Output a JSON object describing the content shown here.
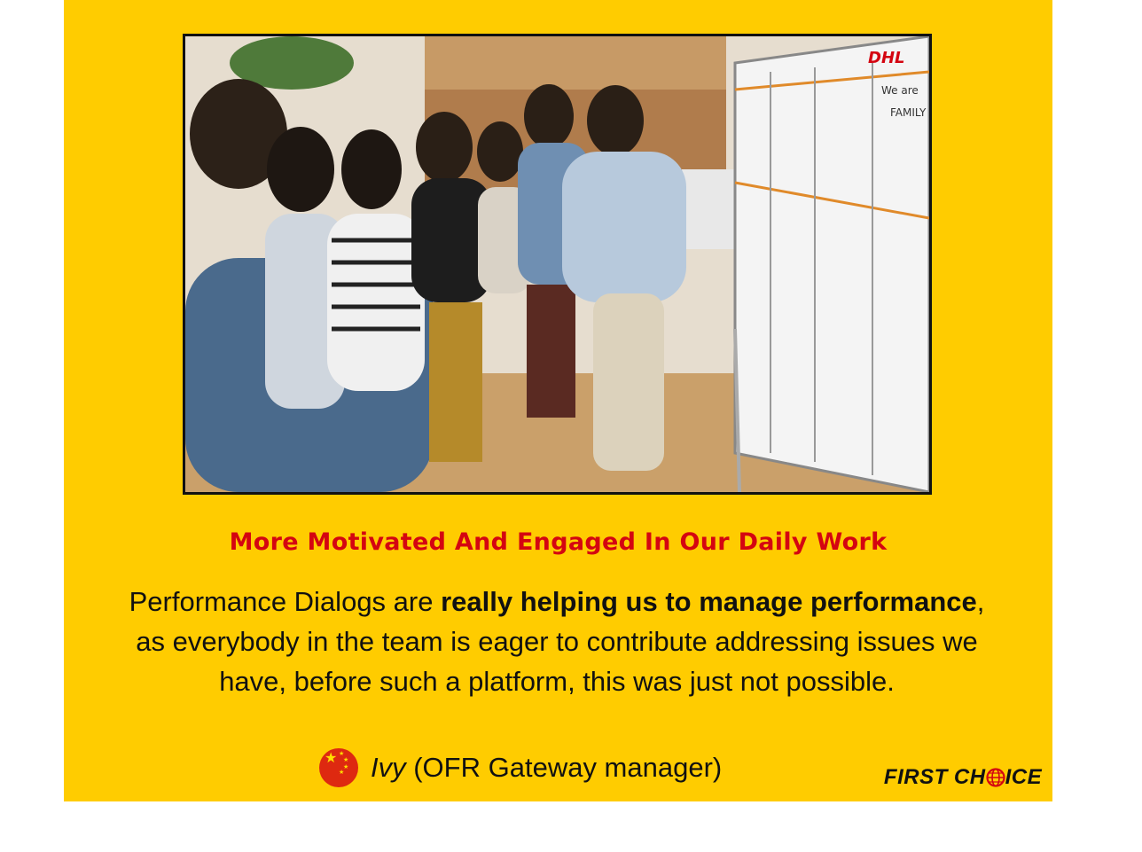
{
  "headline": "More Motivated And Engaged In Our Daily Work",
  "quote": {
    "part1": "Performance Dialogs are ",
    "bold1": "really helping us to manage performance",
    "part2": ", as everybody in  the team is eager to contribute addressing issues we have, before such a platform, this was just not possible."
  },
  "attribution": {
    "name": "Ivy",
    "role": " (OFR Gateway manager)",
    "flag_icon": "china-flag-icon"
  },
  "photo": {
    "board_logo": "DHL",
    "board_note_1": "We are",
    "board_note_2": "FAMILY"
  },
  "brand": {
    "text_a": "FIRST CH",
    "text_b": "ICE",
    "globe_icon": "globe-icon"
  },
  "colors": {
    "background": "#FFCC00",
    "headline": "#D40511",
    "flag_red": "#DE2910",
    "flag_star": "#FFDE00"
  }
}
